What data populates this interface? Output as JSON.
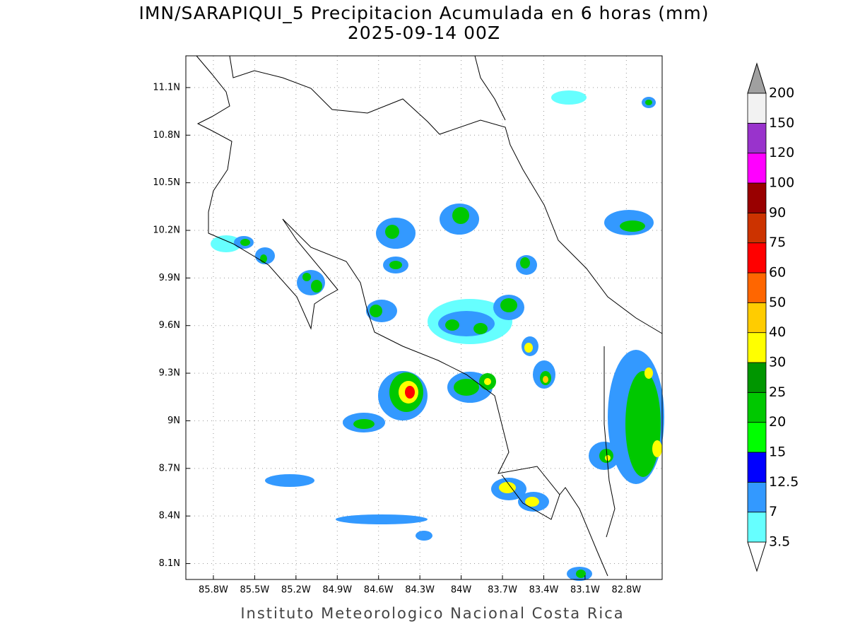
{
  "title": "IMN/SARAPIQUI_5 Precipitacion Acumulada en 6 horas (mm)",
  "subtitle": "2025-09-14 00Z",
  "footer": "Instituto Meteorologico Nacional Costa Rica",
  "map": {
    "xlim": [
      -86.0,
      -82.54
    ],
    "ylim": [
      8.0,
      11.3
    ],
    "xticks": [
      {
        "value": -85.8,
        "label": "85.8W"
      },
      {
        "value": -85.5,
        "label": "85.5W"
      },
      {
        "value": -85.2,
        "label": "85.2W"
      },
      {
        "value": -84.9,
        "label": "84.9W"
      },
      {
        "value": -84.6,
        "label": "84.6W"
      },
      {
        "value": -84.3,
        "label": "84.3W"
      },
      {
        "value": -84.0,
        "label": "84W"
      },
      {
        "value": -83.7,
        "label": "83.7W"
      },
      {
        "value": -83.4,
        "label": "83.4W"
      },
      {
        "value": -83.1,
        "label": "83.1W"
      },
      {
        "value": -82.8,
        "label": "82.8W"
      }
    ],
    "yticks": [
      {
        "value": 8.1,
        "label": "8.1N"
      },
      {
        "value": 8.4,
        "label": "8.4N"
      },
      {
        "value": 8.7,
        "label": "8.7N"
      },
      {
        "value": 9.0,
        "label": "9N"
      },
      {
        "value": 9.3,
        "label": "9.3N"
      },
      {
        "value": 9.6,
        "label": "9.6N"
      },
      {
        "value": 9.9,
        "label": "9.9N"
      },
      {
        "value": 10.2,
        "label": "10.2N"
      },
      {
        "value": 10.5,
        "label": "10.5N"
      },
      {
        "value": 10.8,
        "label": "10.8N"
      },
      {
        "value": 11.1,
        "label": "11.1N"
      }
    ],
    "grid": true
  },
  "colorbar": {
    "levels": [
      3.5,
      7,
      12.5,
      15,
      20,
      25,
      30,
      40,
      50,
      60,
      75,
      90,
      100,
      120,
      150,
      200
    ],
    "colors": [
      "#66ffff",
      "#3399ff",
      "#0000ff",
      "#00ff00",
      "#00c800",
      "#009600",
      "#ffff00",
      "#ffcc00",
      "#ff6600",
      "#ff0000",
      "#cc3300",
      "#990000",
      "#ff00ff",
      "#9933cc",
      "#f2f2f2"
    ],
    "under_color": "#ffffff",
    "over_color": "#a0a0a0"
  }
}
